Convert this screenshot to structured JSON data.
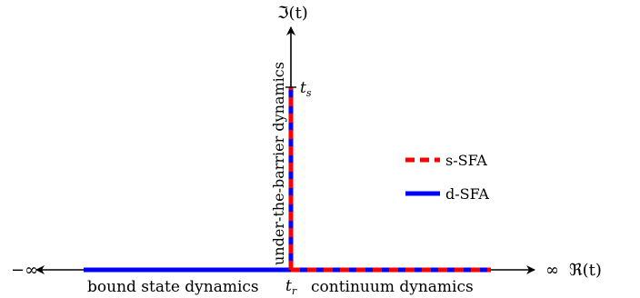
{
  "axes": {
    "imag_label": "ℑ(t)",
    "real_label": "ℜ(t)",
    "neg_inf": "−∞",
    "pos_inf": "∞"
  },
  "ticks": {
    "ts_base": "t",
    "ts_sub": "s",
    "tr_base": "t",
    "tr_sub": "r"
  },
  "annotations": {
    "vertical": "under-the-barrier dynamics",
    "left": "bound state dynamics",
    "right": "continuum dynamics"
  },
  "legend": [
    {
      "label": "s-SFA",
      "style": "dashed",
      "color": "#ff0000"
    },
    {
      "label": "d-SFA",
      "style": "solid",
      "color": "#0000ff"
    }
  ]
}
